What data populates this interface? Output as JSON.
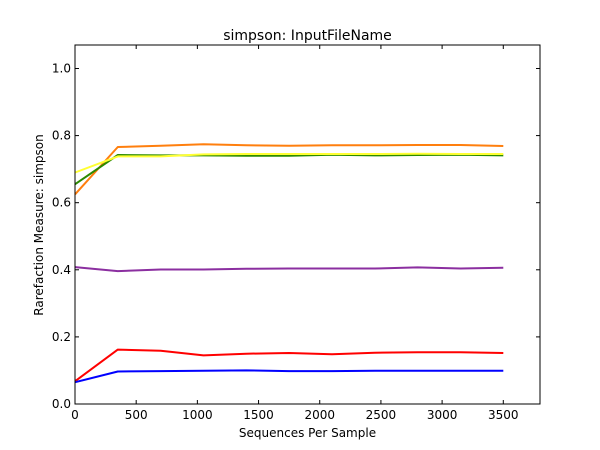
{
  "chart_data": {
    "type": "line",
    "title": "simpson: InputFileName",
    "xlabel": "Sequences Per Sample",
    "ylabel": "Rarefaction Measure: simpson",
    "xlim": [
      0,
      3800
    ],
    "ylim": [
      0.0,
      1.07
    ],
    "grid": false,
    "xticks": [
      0,
      500,
      1000,
      1500,
      2000,
      2500,
      3000,
      3500
    ],
    "yticks": [
      0.0,
      0.2,
      0.4,
      0.6,
      0.8,
      1.0
    ],
    "x": [
      1,
      350,
      700,
      1050,
      1400,
      1750,
      2100,
      2450,
      2800,
      3150,
      3500
    ],
    "series": [
      {
        "color": "#ff7f0e",
        "values": [
          0.625,
          0.766,
          0.77,
          0.774,
          0.771,
          0.77,
          0.771,
          0.771,
          0.772,
          0.772,
          0.769
        ]
      },
      {
        "color": "#2c8a00",
        "values": [
          0.655,
          0.742,
          0.741,
          0.741,
          0.74,
          0.74,
          0.743,
          0.741,
          0.742,
          0.743,
          0.741
        ]
      },
      {
        "color": "#ffff33",
        "values": [
          0.69,
          0.738,
          0.738,
          0.744,
          0.745,
          0.745,
          0.745,
          0.745,
          0.746,
          0.745,
          0.745
        ]
      },
      {
        "color": "#8b2fa0",
        "values": [
          0.408,
          0.396,
          0.401,
          0.401,
          0.403,
          0.404,
          0.404,
          0.404,
          0.407,
          0.404,
          0.406
        ]
      },
      {
        "color": "#ff0000",
        "values": [
          0.068,
          0.162,
          0.159,
          0.145,
          0.15,
          0.152,
          0.148,
          0.153,
          0.154,
          0.154,
          0.152
        ]
      },
      {
        "color": "#0000ff",
        "values": [
          0.065,
          0.097,
          0.098,
          0.099,
          0.1,
          0.098,
          0.098,
          0.099,
          0.099,
          0.099,
          0.099
        ]
      }
    ]
  }
}
